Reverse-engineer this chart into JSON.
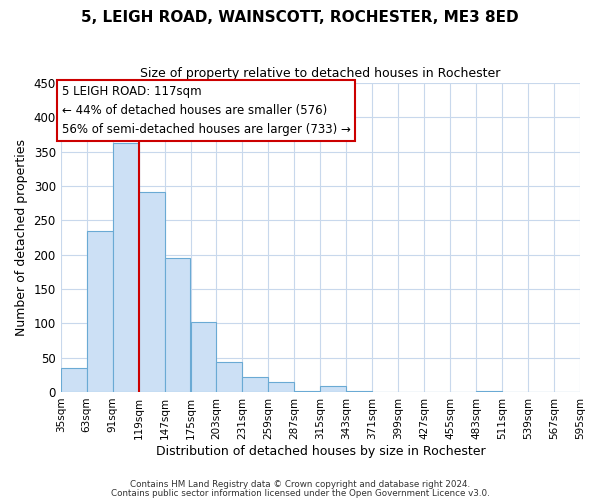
{
  "title": "5, LEIGH ROAD, WAINSCOTT, ROCHESTER, ME3 8ED",
  "subtitle": "Size of property relative to detached houses in Rochester",
  "xlabel": "Distribution of detached houses by size in Rochester",
  "ylabel": "Number of detached properties",
  "bar_values": [
    35,
    234,
    363,
    292,
    195,
    102,
    44,
    22,
    14,
    2,
    9,
    1,
    0,
    0,
    0,
    0,
    2,
    0,
    0,
    0
  ],
  "bin_edges": [
    35,
    63,
    91,
    119,
    147,
    175,
    203,
    231,
    259,
    287,
    315,
    343,
    371,
    399,
    427,
    455,
    483,
    511,
    539,
    567,
    595
  ],
  "tick_labels": [
    "35sqm",
    "63sqm",
    "91sqm",
    "119sqm",
    "147sqm",
    "175sqm",
    "203sqm",
    "231sqm",
    "259sqm",
    "287sqm",
    "315sqm",
    "343sqm",
    "371sqm",
    "399sqm",
    "427sqm",
    "455sqm",
    "483sqm",
    "511sqm",
    "539sqm",
    "567sqm",
    "595sqm"
  ],
  "bar_color": "#cce0f5",
  "bar_edge_color": "#6aaad4",
  "ylim": [
    0,
    450
  ],
  "yticks": [
    0,
    50,
    100,
    150,
    200,
    250,
    300,
    350,
    400,
    450
  ],
  "vline_x": 119,
  "vline_color": "#cc0000",
  "annotation_title": "5 LEIGH ROAD: 117sqm",
  "annotation_line1": "← 44% of detached houses are smaller (576)",
  "annotation_line2": "56% of semi-detached houses are larger (733) →",
  "annotation_box_color": "#ffffff",
  "annotation_box_edge": "#cc0000",
  "footer_line1": "Contains HM Land Registry data © Crown copyright and database right 2024.",
  "footer_line2": "Contains public sector information licensed under the Open Government Licence v3.0.",
  "background_color": "#ffffff",
  "grid_color": "#c8d8ec"
}
